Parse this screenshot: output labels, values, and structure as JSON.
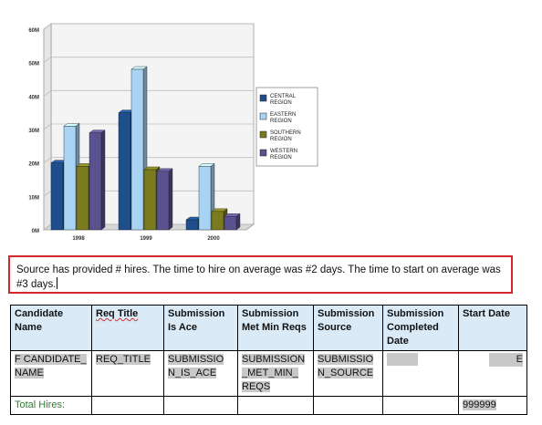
{
  "chart_data": {
    "type": "bar",
    "categories": [
      "1998",
      "1999",
      "2000"
    ],
    "series": [
      {
        "name": "CENTRAL REGION",
        "color": "#1f4e8c",
        "values": [
          20,
          35,
          3
        ]
      },
      {
        "name": "EASTERN REGION",
        "color": "#a9d3f2",
        "values": [
          31,
          48,
          19
        ]
      },
      {
        "name": "SOUTHERN REGION",
        "color": "#7a7a1e",
        "values": [
          19,
          18,
          5.5
        ]
      },
      {
        "name": "WESTERN REGION",
        "color": "#5a528f",
        "values": [
          29,
          17.5,
          4
        ]
      }
    ],
    "yticks": [
      "0M",
      "10M",
      "20M",
      "30M",
      "40M",
      "50M",
      "60M"
    ],
    "ylim": [
      0,
      60
    ],
    "legend": "right",
    "grid": true
  },
  "message": {
    "text": "Source has provided #  hires.  The time to hire on average was #2  days.  The time to start on average was  #3 days."
  },
  "table": {
    "headers": [
      "Candidate Name",
      "Req Title",
      "Submission Is Ace",
      "Submission Met Min Reqs",
      "Submission Source",
      "Submission Completed Date",
      "Start Date"
    ],
    "row": [
      "F CANDIDATE_ NAME",
      "REQ_TITLE",
      "SUBMISSIO N_IS_ACE",
      "SUBMISSION _MET_MIN_ REQS",
      "SUBMISSIO N_SOURCE",
      "",
      "E"
    ],
    "total_label": "Total Hires:",
    "total_value": "999999"
  }
}
